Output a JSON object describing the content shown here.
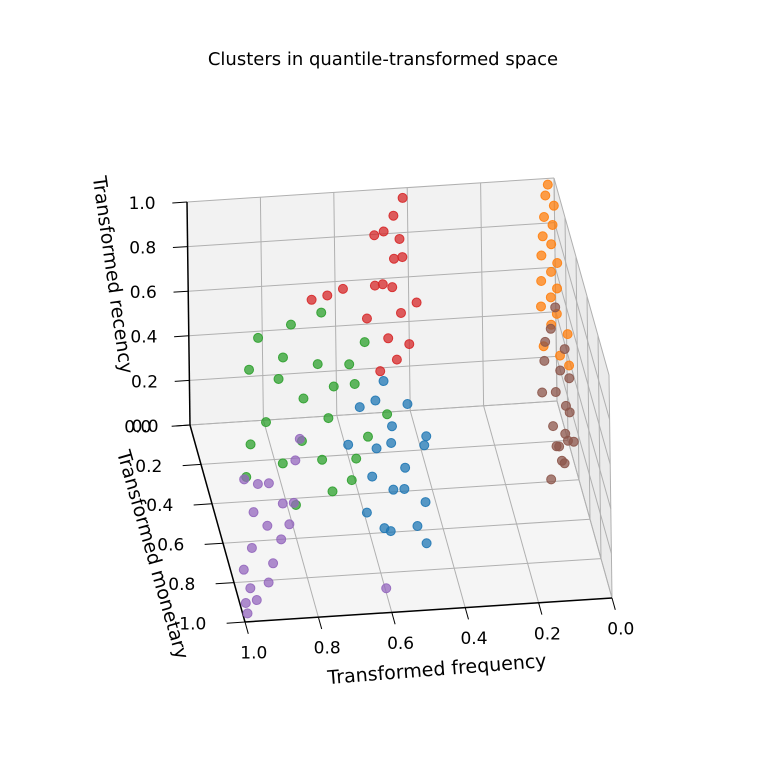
{
  "chart_data": {
    "type": "scatter3d",
    "title": "Clusters in quantile-transformed space",
    "xlabel": "Transformed frequency",
    "ylabel": "Transformed monetary",
    "zlabel": "Transformed recency",
    "xlim": [
      0,
      1
    ],
    "ylim": [
      0,
      1
    ],
    "zlim": [
      0,
      1
    ],
    "xticks": [
      {
        "value": 0,
        "label": "0.0"
      },
      {
        "value": 0.2,
        "label": "0.2"
      },
      {
        "value": 0.4,
        "label": "0.4"
      },
      {
        "value": 0.6,
        "label": "0.6"
      },
      {
        "value": 0.8,
        "label": "0.8"
      },
      {
        "value": 1,
        "label": "1.0"
      }
    ],
    "yticks": [
      {
        "value": 0,
        "label": "0.0"
      },
      {
        "value": 0.2,
        "label": "0.2"
      },
      {
        "value": 0.4,
        "label": "0.4"
      },
      {
        "value": 0.6,
        "label": "0.6"
      },
      {
        "value": 0.8,
        "label": "0.8"
      },
      {
        "value": 1,
        "label": "1.0"
      }
    ],
    "zticks": [
      {
        "value": 0,
        "label": "0.0"
      },
      {
        "value": 0.2,
        "label": "0.2"
      },
      {
        "value": 0.4,
        "label": "0.4"
      },
      {
        "value": 0.6,
        "label": "0.6"
      },
      {
        "value": 0.8,
        "label": "0.8"
      },
      {
        "value": 1,
        "label": "1.0"
      }
    ],
    "grid": true,
    "series": [
      {
        "color": "#1f77b4",
        "x": [
          0.45,
          0.5,
          0.55,
          0.48,
          0.52,
          0.58,
          0.42,
          0.6,
          0.47,
          0.53,
          0.57,
          0.5,
          0.44,
          0.62,
          0.55,
          0.49,
          0.4,
          0.56,
          0.51,
          0.46
        ],
        "y": [
          0.3,
          0.35,
          0.4,
          0.45,
          0.5,
          0.3,
          0.4,
          0.55,
          0.6,
          0.25,
          0.45,
          0.2,
          0.55,
          0.35,
          0.65,
          0.5,
          0.3,
          0.6,
          0.4,
          0.7
        ],
        "z": [
          0.3,
          0.25,
          0.2,
          0.15,
          0.1,
          0.3,
          0.2,
          0.05,
          0.02,
          0.28,
          0.12,
          0.32,
          0.08,
          0.18,
          0.05,
          0.1,
          0.15,
          0.02,
          0.22,
          0.03
        ]
      },
      {
        "color": "#ff7f0e",
        "x": [
          0.02,
          0.03,
          0.01,
          0.04,
          0.02,
          0.05,
          0.03,
          0.06,
          0.02,
          0.04,
          0.07,
          0.03,
          0.05,
          0.08,
          0.04,
          0.06,
          0.02,
          0.09,
          0.05,
          0.03
        ],
        "y": [
          0.02,
          0.04,
          0.06,
          0.08,
          0.1,
          0.12,
          0.14,
          0.16,
          0.18,
          0.2,
          0.22,
          0.24,
          0.26,
          0.28,
          0.3,
          0.33,
          0.36,
          0.39,
          0.42,
          0.45
        ],
        "z": [
          0.99,
          0.96,
          0.93,
          0.9,
          0.88,
          0.85,
          0.83,
          0.8,
          0.78,
          0.76,
          0.74,
          0.72,
          0.7,
          0.68,
          0.66,
          0.64,
          0.62,
          0.6,
          0.58,
          0.56
        ]
      },
      {
        "color": "#2ca02c",
        "x": [
          0.55,
          0.6,
          0.65,
          0.7,
          0.75,
          0.8,
          0.85,
          0.9,
          0.62,
          0.68,
          0.72,
          0.78,
          0.82,
          0.58,
          0.66,
          0.74,
          0.88,
          0.92,
          0.7,
          0.64,
          0.76,
          0.84,
          0.6,
          0.52,
          0.8
        ],
        "y": [
          0.2,
          0.25,
          0.3,
          0.35,
          0.2,
          0.3,
          0.4,
          0.45,
          0.5,
          0.4,
          0.55,
          0.25,
          0.5,
          0.45,
          0.15,
          0.35,
          0.3,
          0.5,
          0.6,
          0.55,
          0.45,
          0.2,
          0.35,
          0.4,
          0.6
        ],
        "z": [
          0.5,
          0.45,
          0.4,
          0.55,
          0.6,
          0.45,
          0.35,
          0.3,
          0.25,
          0.35,
          0.3,
          0.5,
          0.25,
          0.3,
          0.6,
          0.4,
          0.5,
          0.2,
          0.2,
          0.2,
          0.3,
          0.55,
          0.45,
          0.35,
          0.15
        ]
      },
      {
        "color": "#d62728",
        "x": [
          0.42,
          0.45,
          0.48,
          0.44,
          0.5,
          0.46,
          0.43,
          0.52,
          0.47,
          0.49,
          0.41,
          0.55,
          0.45,
          0.5,
          0.6,
          0.65,
          0.7,
          0.44,
          0.48,
          0.53
        ],
        "y": [
          0.05,
          0.08,
          0.1,
          0.12,
          0.06,
          0.15,
          0.1,
          0.2,
          0.18,
          0.14,
          0.22,
          0.25,
          0.2,
          0.3,
          0.15,
          0.2,
          0.25,
          0.28,
          0.32,
          0.35
        ],
        "z": [
          1.0,
          0.95,
          0.9,
          0.88,
          0.85,
          0.82,
          0.78,
          0.75,
          0.72,
          0.7,
          0.68,
          0.65,
          0.62,
          0.6,
          0.7,
          0.72,
          0.75,
          0.55,
          0.52,
          0.5
        ]
      },
      {
        "color": "#9467bd",
        "x": [
          0.85,
          0.9,
          0.95,
          0.98,
          0.88,
          0.92,
          0.8,
          0.96,
          0.99,
          0.87,
          0.93,
          0.78,
          0.9,
          0.97,
          0.84,
          0.94,
          0.99,
          0.82,
          0.91,
          0.6
        ],
        "y": [
          0.7,
          0.75,
          0.8,
          0.85,
          0.65,
          0.9,
          0.6,
          0.95,
          0.98,
          0.8,
          0.7,
          0.55,
          0.85,
          0.9,
          0.75,
          0.6,
          0.95,
          0.7,
          0.65,
          0.9
        ],
        "z": [
          0.25,
          0.2,
          0.15,
          0.1,
          0.3,
          0.08,
          0.35,
          0.05,
          0.02,
          0.18,
          0.22,
          0.4,
          0.12,
          0.06,
          0.2,
          0.28,
          0.04,
          0.25,
          0.3,
          0.02
        ]
      },
      {
        "color": "#8c564b",
        "x": [
          0.03,
          0.05,
          0.02,
          0.07,
          0.04,
          0.06,
          0.08,
          0.03,
          0.05,
          0.1,
          0.04,
          0.06,
          0.02,
          0.08,
          0.05,
          0.07,
          0.03,
          0.09,
          0.06,
          0.04
        ],
        "y": [
          0.2,
          0.25,
          0.3,
          0.28,
          0.35,
          0.4,
          0.33,
          0.45,
          0.5,
          0.42,
          0.48,
          0.45,
          0.38,
          0.48,
          0.48,
          0.47,
          0.52,
          0.5,
          0.5,
          0.45
        ],
        "z": [
          0.6,
          0.55,
          0.5,
          0.52,
          0.45,
          0.4,
          0.48,
          0.35,
          0.3,
          0.42,
          0.25,
          0.2,
          0.44,
          0.32,
          0.15,
          0.22,
          0.28,
          0.1,
          0.18,
          0.38
        ]
      }
    ]
  }
}
